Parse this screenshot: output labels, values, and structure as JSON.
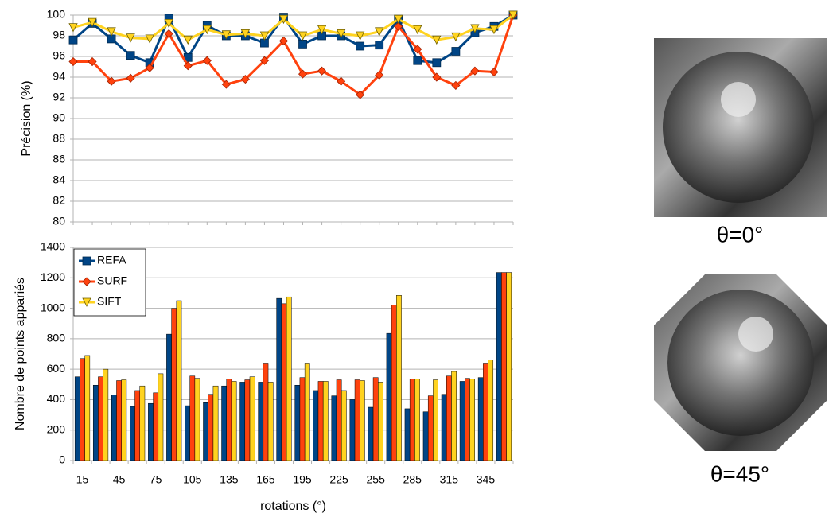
{
  "chart_data": [
    {
      "type": "line",
      "ylabel": "Précision (%)",
      "ylim": [
        80,
        100
      ],
      "yticks": [
        80,
        82,
        84,
        86,
        88,
        90,
        92,
        94,
        96,
        98,
        100
      ],
      "grid": true,
      "series": [
        {
          "name": "REFA",
          "color": "#004586",
          "marker": "square",
          "values": [
            97.6,
            99.2,
            97.7,
            96.1,
            95.4,
            99.7,
            95.9,
            99.0,
            98.0,
            98.0,
            97.3,
            99.8,
            97.2,
            98.0,
            98.0,
            97.0,
            97.1,
            99.6,
            95.6,
            95.4,
            96.5,
            98.3,
            98.9,
            100
          ]
        },
        {
          "name": "SURF",
          "color": "#ff420e",
          "marker": "diamond",
          "values": [
            95.5,
            95.5,
            93.6,
            93.9,
            94.9,
            98.2,
            95.1,
            95.6,
            93.3,
            93.8,
            95.6,
            97.5,
            94.3,
            94.6,
            93.6,
            92.3,
            94.2,
            98.9,
            96.7,
            94.0,
            93.2,
            94.6,
            94.5,
            100
          ]
        },
        {
          "name": "SIFT",
          "color": "#ffd320",
          "marker": "triangle-down",
          "values": [
            98.8,
            99.3,
            98.4,
            97.8,
            97.7,
            99.2,
            97.6,
            98.6,
            98.1,
            98.2,
            98.0,
            99.6,
            98.0,
            98.6,
            98.2,
            98.0,
            98.4,
            99.6,
            98.6,
            97.6,
            97.9,
            98.7,
            98.6,
            100
          ]
        }
      ]
    },
    {
      "type": "bar",
      "ylabel": "Nombre de points appariés",
      "xlabel": "rotations (°)",
      "categories": [
        "15",
        null,
        "45",
        null,
        "75",
        null,
        "105",
        null,
        "135",
        null,
        "165",
        null,
        "195",
        null,
        "225",
        null,
        "255",
        null,
        "285",
        null,
        "315",
        null,
        "345",
        null
      ],
      "ylim": [
        0,
        1400
      ],
      "yticks": [
        0,
        200,
        400,
        600,
        800,
        1000,
        1200,
        1400
      ],
      "grid": true,
      "legend": "upper left",
      "series": [
        {
          "name": "REFA",
          "color": "#004586",
          "marker": "square",
          "values": [
            550,
            495,
            430,
            355,
            375,
            830,
            360,
            380,
            490,
            515,
            515,
            1065,
            495,
            460,
            425,
            400,
            350,
            835,
            340,
            320,
            435,
            520,
            545,
            1235
          ]
        },
        {
          "name": "SURF",
          "color": "#ff420e",
          "marker": "diamond",
          "values": [
            670,
            550,
            525,
            460,
            445,
            1000,
            555,
            435,
            535,
            530,
            640,
            1030,
            545,
            520,
            530,
            530,
            545,
            1020,
            535,
            425,
            555,
            540,
            640,
            1235
          ]
        },
        {
          "name": "SIFT",
          "color": "#ffd320",
          "marker": "triangle-down",
          "values": [
            690,
            600,
            530,
            490,
            570,
            1050,
            540,
            490,
            520,
            550,
            515,
            1075,
            640,
            520,
            460,
            525,
            515,
            1085,
            535,
            530,
            585,
            535,
            660,
            1235
          ]
        }
      ]
    }
  ],
  "images": [
    {
      "caption": "θ=0°"
    },
    {
      "caption": "θ=45°"
    }
  ]
}
